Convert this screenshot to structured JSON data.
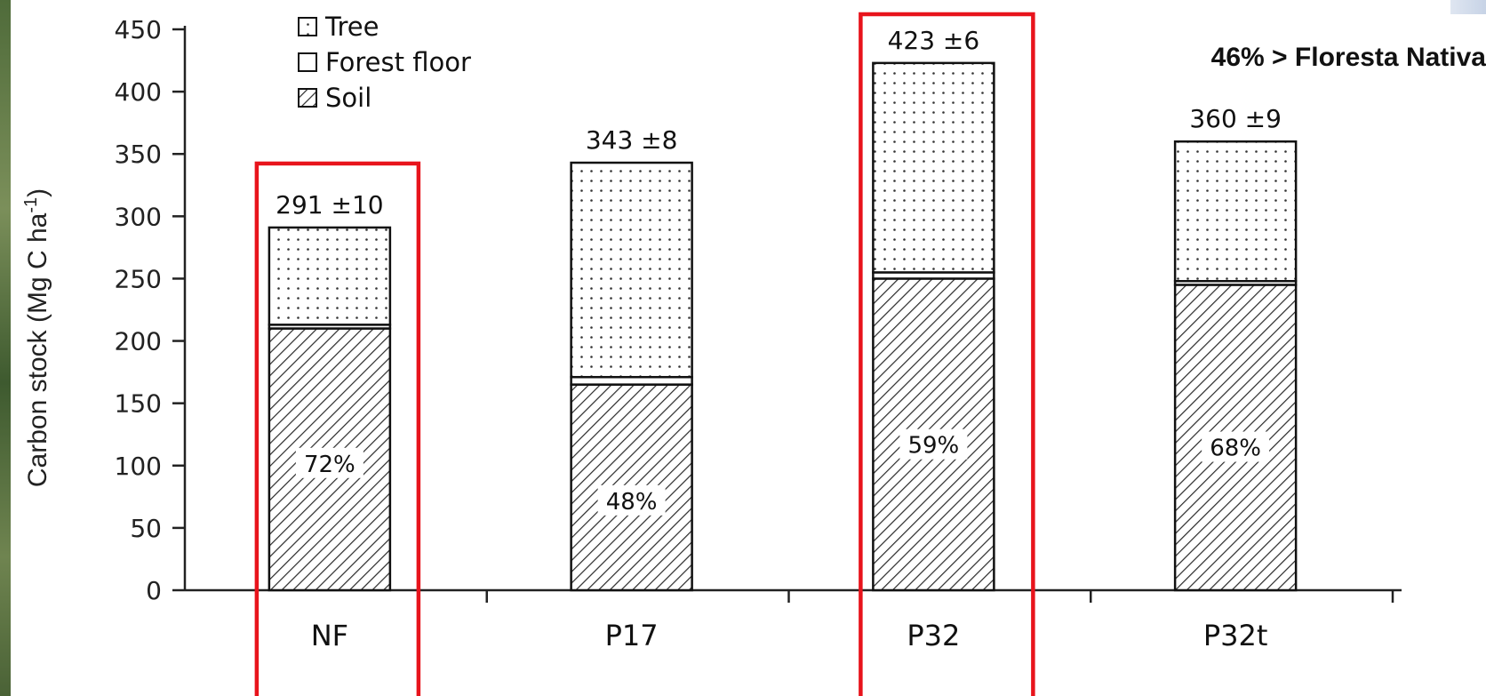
{
  "chart_data": {
    "type": "bar",
    "stacked": true,
    "categories": [
      "NF",
      "P17",
      "P32",
      "P32t"
    ],
    "series": [
      {
        "name": "Soil",
        "pattern": "hatch",
        "values": [
          210,
          165,
          250,
          245
        ]
      },
      {
        "name": "Forest floor",
        "pattern": "open",
        "values": [
          3,
          6,
          5,
          3
        ]
      },
      {
        "name": "Tree",
        "pattern": "dots",
        "values": [
          78,
          172,
          168,
          112
        ]
      }
    ],
    "totals": [
      "291 ±10",
      "343 ±8",
      "423 ±6",
      "360 ±9"
    ],
    "total_values": [
      291,
      343,
      423,
      360
    ],
    "soil_percent_labels": [
      "72%",
      "48%",
      "59%",
      "68%"
    ],
    "soil_percent_label_y": [
      100,
      70,
      115,
      113
    ],
    "ylabel_main": "Carbon stock (Mg C ha",
    "ylabel_sup": "-1",
    "ylabel_close": ")",
    "xlabel": "",
    "ylim": [
      0,
      450
    ],
    "yticks": [
      0,
      50,
      100,
      150,
      200,
      250,
      300,
      350,
      400,
      450
    ],
    "legend_placement": "top-left",
    "highlighted_categories": [
      "NF",
      "P32"
    ],
    "annotation": "46% > Floresta Nativa",
    "colors": {
      "highlight": "#e8141c",
      "bar_stroke": "#111111",
      "pattern": "#333333"
    }
  }
}
